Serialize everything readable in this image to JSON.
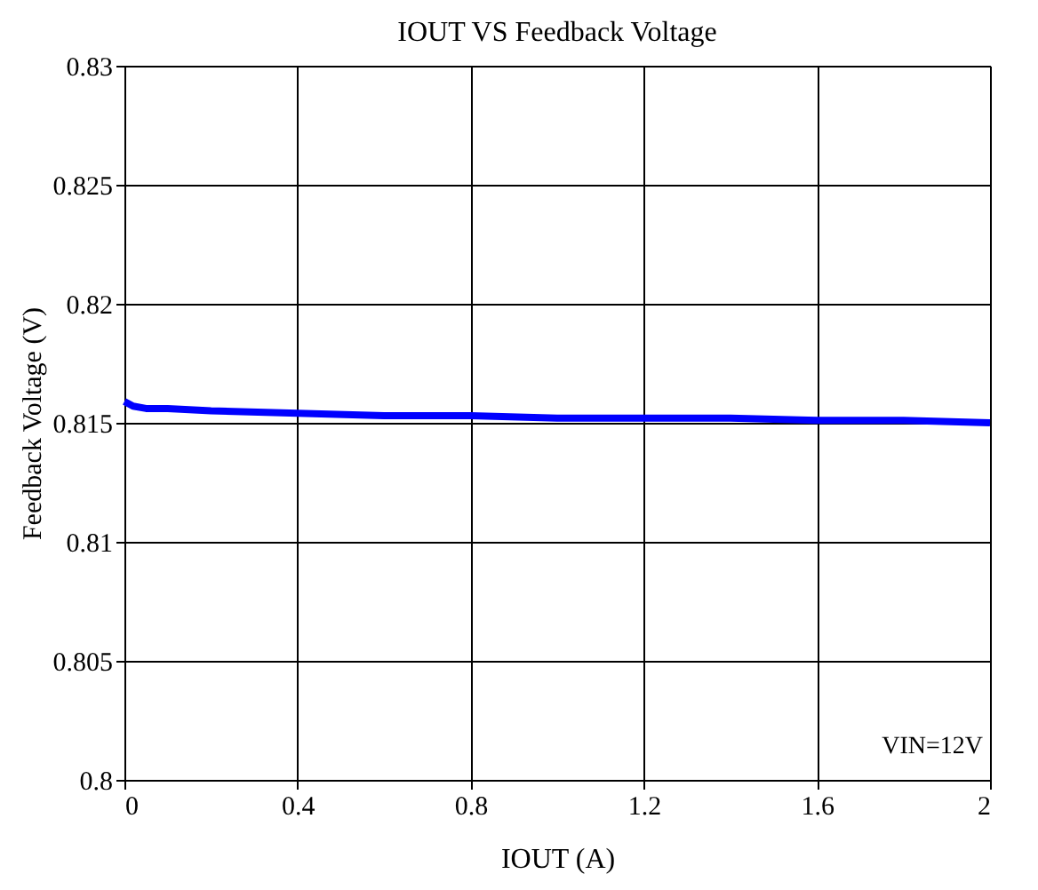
{
  "chart_data": {
    "type": "line",
    "title": "IOUT VS Feedback Voltage",
    "xlabel": "IOUT (A)",
    "ylabel": "Feedback Voltage (V)",
    "x": [
      0,
      0.02,
      0.05,
      0.1,
      0.2,
      0.4,
      0.6,
      0.8,
      1.0,
      1.2,
      1.4,
      1.6,
      1.8,
      2.0
    ],
    "series": [
      {
        "color": "#0000ff",
        "values": [
          0.8159,
          0.8157,
          0.8156,
          0.8156,
          0.8155,
          0.8154,
          0.8153,
          0.8153,
          0.8152,
          0.8152,
          0.8152,
          0.8151,
          0.8151,
          0.815
        ]
      }
    ],
    "xlim": [
      0,
      2
    ],
    "xticks": [
      0,
      0.4,
      0.8,
      1.2,
      1.6,
      2
    ],
    "ylim": [
      0.8,
      0.83
    ],
    "yticks": [
      0.8,
      0.805,
      0.81,
      0.815,
      0.82,
      0.825,
      0.83
    ],
    "grid": true,
    "marker": "none",
    "line_style": "solid",
    "annotations": [
      "VIN=12V"
    ]
  }
}
